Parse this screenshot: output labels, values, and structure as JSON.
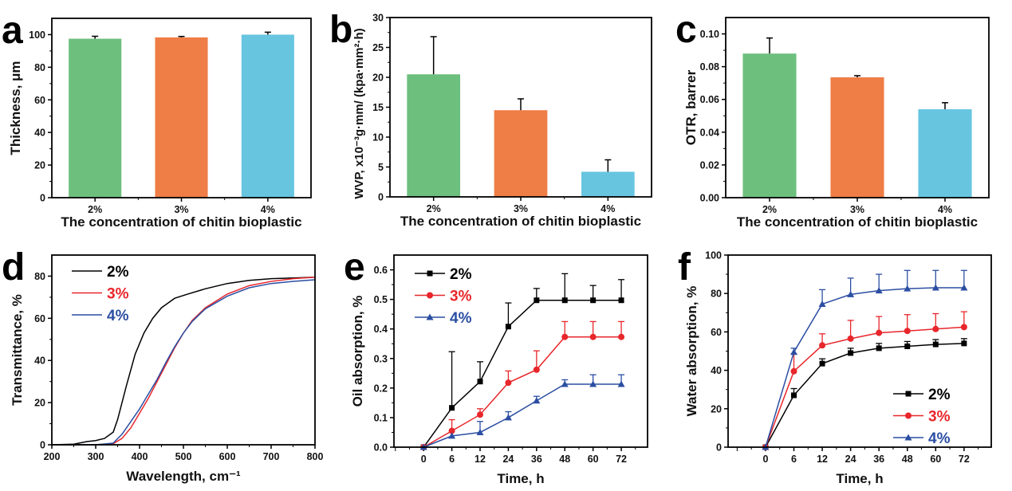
{
  "chart_data": [
    {
      "id": "a",
      "letter": "a",
      "type": "bar",
      "categories": [
        "2%",
        "3%",
        "4%"
      ],
      "values": [
        97.5,
        98.3,
        100
      ],
      "errors": [
        1.5,
        0.6,
        1.5
      ],
      "colors": [
        "#6dbf7e",
        "#ef7d46",
        "#67c5e0"
      ],
      "ylim": [
        0,
        110
      ],
      "yticks": [
        0,
        20,
        40,
        60,
        80,
        100
      ],
      "ylabel": "Thickness, μm",
      "xlabel": "The concentration of chitin bioplastic"
    },
    {
      "id": "b",
      "letter": "b",
      "type": "bar",
      "categories": [
        "2%",
        "3%",
        "4%"
      ],
      "values": [
        20.5,
        14.5,
        4.2
      ],
      "errors": [
        6.3,
        1.9,
        2.0
      ],
      "colors": [
        "#6dbf7e",
        "#ef7d46",
        "#67c5e0"
      ],
      "ylim": [
        0,
        30
      ],
      "yticks": [
        0,
        5,
        10,
        15,
        20,
        25,
        30
      ],
      "ylabel": "WVP, x10⁻³g·mm/ (kpa·mm²·h)",
      "xlabel": "The concentration of chitin bioplastic"
    },
    {
      "id": "c",
      "letter": "c",
      "type": "bar",
      "categories": [
        "2%",
        "3%",
        "4%"
      ],
      "values": [
        0.088,
        0.0735,
        0.054
      ],
      "errors": [
        0.0095,
        0.001,
        0.004
      ],
      "colors": [
        "#6dbf7e",
        "#ef7d46",
        "#67c5e0"
      ],
      "ylim": [
        0,
        0.11
      ],
      "yticks": [
        "0.00",
        "0.02",
        "0.04",
        "0.06",
        "0.08",
        "0.10"
      ],
      "ylabel": "OTR, barrer",
      "xlabel": "The concentration of chitin bioplastic"
    },
    {
      "id": "d",
      "letter": "d",
      "type": "line",
      "xlim": [
        200,
        800
      ],
      "ylim": [
        0,
        90
      ],
      "xticks": [
        200,
        300,
        400,
        500,
        600,
        700,
        800
      ],
      "yticks": [
        0,
        20,
        40,
        60,
        80
      ],
      "ylabel": "Transmittance, %",
      "xlabel": "Wavelength, cm⁻¹",
      "legend": "top-left",
      "series": [
        {
          "name": "2%",
          "color": "#000000",
          "x": [
            200,
            250,
            280,
            300,
            320,
            340,
            350,
            370,
            390,
            410,
            430,
            450,
            480,
            510,
            550,
            600,
            650,
            700,
            800
          ],
          "y": [
            0,
            0.3,
            1.5,
            2,
            3,
            6,
            12,
            28,
            43,
            53,
            60,
            65,
            69.5,
            71.5,
            74,
            76.5,
            78,
            78.8,
            79.5
          ]
        },
        {
          "name": "3%",
          "color": "#e8262b",
          "x": [
            200,
            300,
            340,
            360,
            380,
            400,
            420,
            440,
            460,
            480,
            500,
            520,
            550,
            600,
            650,
            700,
            750,
            800
          ],
          "y": [
            0,
            0,
            0.5,
            3,
            8,
            15,
            22,
            30,
            38,
            46,
            53,
            59,
            65,
            71.5,
            75.5,
            77.5,
            78.8,
            79.5
          ]
        },
        {
          "name": "4%",
          "color": "#2b4ea2",
          "x": [
            200,
            300,
            340,
            360,
            380,
            400,
            420,
            440,
            460,
            480,
            500,
            520,
            550,
            600,
            650,
            700,
            750,
            800
          ],
          "y": [
            0,
            0,
            0.8,
            5,
            11,
            17,
            24,
            31,
            39,
            46.5,
            53,
            58.5,
            64.5,
            70.5,
            74.5,
            76.5,
            77.5,
            78.3
          ]
        }
      ]
    },
    {
      "id": "e",
      "letter": "e",
      "type": "line",
      "x": [
        "0",
        "6",
        "12",
        "24",
        "36",
        "48",
        "60",
        "72"
      ],
      "ylim": [
        0,
        0.65
      ],
      "yticks": [
        "0.0",
        "0.1",
        "0.2",
        "0.3",
        "0.4",
        "0.5",
        "0.6"
      ],
      "ylabel": "Oil absorption, %",
      "xlabel": "Time, h",
      "legend": "top-left",
      "series": [
        {
          "name": "2%",
          "color": "#000000",
          "marker": "square",
          "y": [
            0,
            0.133,
            0.222,
            0.408,
            0.497,
            0.497,
            0.497,
            0.497
          ],
          "err": [
            0,
            0.19,
            0.067,
            0.08,
            0.04,
            0.09,
            0.05,
            0.07
          ]
        },
        {
          "name": "3%",
          "color": "#e8262b",
          "marker": "circle",
          "y": [
            0,
            0.055,
            0.11,
            0.218,
            0.262,
            0.373,
            0.373,
            0.373
          ],
          "err": [
            0,
            0.038,
            0.02,
            0.04,
            0.064,
            0.052,
            0.052,
            0.052
          ]
        },
        {
          "name": "4%",
          "color": "#2b4ea2",
          "marker": "triangle",
          "y": [
            0,
            0.038,
            0.05,
            0.1,
            0.157,
            0.213,
            0.213,
            0.213
          ],
          "err": [
            0,
            0,
            0.037,
            0.02,
            0.015,
            0.015,
            0.032,
            0.032
          ]
        }
      ]
    },
    {
      "id": "f",
      "letter": "f",
      "type": "line",
      "x": [
        "0",
        "6",
        "12",
        "24",
        "36",
        "48",
        "60",
        "72"
      ],
      "ylim": [
        0,
        100
      ],
      "yticks": [
        0,
        20,
        40,
        60,
        80,
        100
      ],
      "ylabel": "Water absorption, %",
      "xlabel": "Time, h",
      "legend": "bottom-right",
      "series": [
        {
          "name": "2%",
          "color": "#000000",
          "marker": "square",
          "y": [
            0,
            27,
            43.5,
            49,
            51.5,
            52.5,
            53.5,
            54
          ],
          "err": [
            0,
            3.5,
            2.5,
            2.5,
            2.5,
            2.5,
            2.5,
            2.5
          ]
        },
        {
          "name": "3%",
          "color": "#e8262b",
          "marker": "circle",
          "y": [
            0,
            39.5,
            53,
            56.5,
            59.5,
            60.5,
            61.5,
            62.5
          ],
          "err": [
            0,
            9,
            6,
            9.5,
            8.5,
            8.5,
            8,
            8
          ]
        },
        {
          "name": "4%",
          "color": "#2b4ea2",
          "marker": "triangle",
          "y": [
            0,
            49.5,
            74.5,
            79.5,
            81.5,
            82.5,
            83,
            83
          ],
          "err": [
            0,
            2,
            7.5,
            8.5,
            8.5,
            9.5,
            9,
            9
          ]
        }
      ]
    }
  ]
}
